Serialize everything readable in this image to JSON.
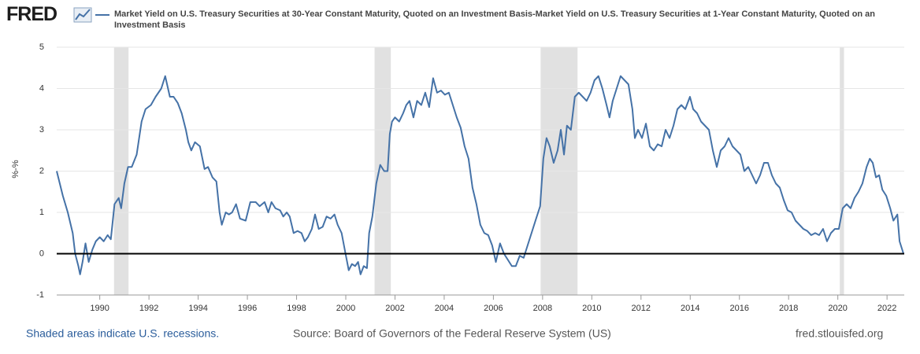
{
  "brand": "FRED",
  "footer": {
    "note": "Shaded areas indicate U.S. recessions.",
    "source": "Source: Board of Governors of the Federal Reserve System (US)",
    "site": "fred.stlouisfed.org"
  },
  "chart_data": {
    "type": "line",
    "y_label": "%-%",
    "xlim": [
      1988.25,
      2022.7
    ],
    "xticks": [
      1990,
      1992,
      1994,
      1996,
      1998,
      2000,
      2002,
      2004,
      2006,
      2008,
      2010,
      2012,
      2014,
      2016,
      2018,
      2020,
      2022
    ],
    "ylim": [
      -1,
      5
    ],
    "yticks": [
      -1,
      0,
      1,
      2,
      3,
      4,
      5
    ],
    "grid": true,
    "recession_color": "#e1e1e1",
    "recessions": [
      {
        "start": 1990.58,
        "end": 1991.17
      },
      {
        "start": 2001.17,
        "end": 2001.83
      },
      {
        "start": 2007.92,
        "end": 2009.42
      },
      {
        "start": 2020.08,
        "end": 2020.25
      }
    ],
    "x": [
      1988.25,
      1988.5,
      1988.7,
      1988.9,
      1989.0,
      1989.13,
      1989.2,
      1989.3,
      1989.42,
      1989.55,
      1989.7,
      1989.84,
      1990.0,
      1990.16,
      1990.32,
      1990.45,
      1990.6,
      1990.77,
      1990.87,
      1991.0,
      1991.15,
      1991.3,
      1991.5,
      1991.7,
      1991.86,
      1992.08,
      1992.27,
      1992.5,
      1992.66,
      1992.85,
      1993.0,
      1993.17,
      1993.33,
      1993.5,
      1993.6,
      1993.72,
      1993.87,
      1994.07,
      1994.26,
      1994.4,
      1994.58,
      1994.74,
      1994.87,
      1994.96,
      1995.12,
      1995.25,
      1995.38,
      1995.54,
      1995.7,
      1995.93,
      1996.12,
      1996.34,
      1996.5,
      1996.7,
      1996.85,
      1996.98,
      1997.14,
      1997.33,
      1997.46,
      1997.6,
      1997.72,
      1997.88,
      1998.04,
      1998.2,
      1998.33,
      1998.46,
      1998.62,
      1998.75,
      1998.9,
      1999.06,
      1999.22,
      1999.38,
      1999.54,
      1999.67,
      1999.83,
      1999.99,
      2000.12,
      2000.25,
      2000.38,
      2000.5,
      2000.6,
      2000.73,
      2000.86,
      2000.95,
      2001.08,
      2001.24,
      2001.4,
      2001.56,
      2001.7,
      2001.79,
      2001.88,
      2002.0,
      2002.17,
      2002.33,
      2002.46,
      2002.59,
      2002.75,
      2002.9,
      2003.07,
      2003.23,
      2003.39,
      2003.55,
      2003.71,
      2003.87,
      2004.03,
      2004.19,
      2004.35,
      2004.51,
      2004.67,
      2004.83,
      2004.99,
      2005.15,
      2005.31,
      2005.47,
      2005.63,
      2005.79,
      2005.95,
      2006.1,
      2006.27,
      2006.43,
      2006.59,
      2006.75,
      2006.91,
      2007.07,
      2007.23,
      2007.39,
      2007.55,
      2007.71,
      2007.9,
      2008.03,
      2008.16,
      2008.29,
      2008.45,
      2008.61,
      2008.74,
      2008.87,
      2008.99,
      2009.15,
      2009.31,
      2009.47,
      2009.63,
      2009.79,
      2009.95,
      2010.11,
      2010.27,
      2010.43,
      2010.6,
      2010.72,
      2010.85,
      2011.01,
      2011.17,
      2011.33,
      2011.49,
      2011.65,
      2011.75,
      2011.88,
      2012.04,
      2012.2,
      2012.36,
      2012.52,
      2012.68,
      2012.84,
      2013.0,
      2013.16,
      2013.32,
      2013.48,
      2013.64,
      2013.8,
      2013.99,
      2014.12,
      2014.28,
      2014.44,
      2014.6,
      2014.76,
      2014.92,
      2015.08,
      2015.24,
      2015.4,
      2015.56,
      2015.72,
      2015.88,
      2016.04,
      2016.2,
      2016.36,
      2016.52,
      2016.68,
      2016.84,
      2017.0,
      2017.16,
      2017.32,
      2017.48,
      2017.64,
      2017.8,
      2017.96,
      2018.12,
      2018.28,
      2018.44,
      2018.6,
      2018.76,
      2018.92,
      2019.08,
      2019.24,
      2019.4,
      2019.56,
      2019.72,
      2019.88,
      2020.04,
      2020.2,
      2020.36,
      2020.52,
      2020.68,
      2020.84,
      2021.0,
      2021.17,
      2021.3,
      2021.42,
      2021.55,
      2021.68,
      2021.81,
      2021.97,
      2022.13,
      2022.26,
      2022.42,
      2022.51,
      2022.67
    ],
    "series": [
      {
        "name": "Market Yield on U.S. Treasury Securities at 30-Year Constant Maturity, Quoted on an Investment Basis-Market Yield on U.S. Treasury Securities at 1-Year Constant Maturity, Quoted on an Investment Basis",
        "color": "#4572a7",
        "values": [
          2.0,
          1.4,
          1.0,
          0.5,
          0.0,
          -0.3,
          -0.5,
          -0.2,
          0.25,
          -0.2,
          0.1,
          0.3,
          0.4,
          0.3,
          0.45,
          0.35,
          1.2,
          1.35,
          1.1,
          1.7,
          2.1,
          2.1,
          2.4,
          3.2,
          3.5,
          3.6,
          3.8,
          4.0,
          4.3,
          3.8,
          3.8,
          3.65,
          3.4,
          3.0,
          2.7,
          2.5,
          2.7,
          2.6,
          2.05,
          2.1,
          1.85,
          1.75,
          1.0,
          0.7,
          1.0,
          0.95,
          1.0,
          1.2,
          0.85,
          0.8,
          1.25,
          1.25,
          1.15,
          1.25,
          1.0,
          1.25,
          1.1,
          1.05,
          0.9,
          1.0,
          0.9,
          0.5,
          0.55,
          0.5,
          0.3,
          0.4,
          0.6,
          0.95,
          0.6,
          0.65,
          0.9,
          0.85,
          0.95,
          0.7,
          0.5,
          0.0,
          -0.4,
          -0.25,
          -0.3,
          -0.2,
          -0.5,
          -0.3,
          -0.35,
          0.5,
          0.9,
          1.7,
          2.15,
          2.0,
          2.0,
          2.9,
          3.2,
          3.3,
          3.2,
          3.4,
          3.6,
          3.7,
          3.3,
          3.7,
          3.6,
          3.9,
          3.55,
          4.25,
          3.9,
          3.95,
          3.85,
          3.9,
          3.6,
          3.3,
          3.05,
          2.6,
          2.3,
          1.6,
          1.2,
          0.7,
          0.5,
          0.45,
          0.2,
          -0.2,
          0.25,
          0.0,
          -0.15,
          -0.3,
          -0.3,
          -0.05,
          -0.1,
          0.2,
          0.5,
          0.8,
          1.15,
          2.3,
          2.8,
          2.6,
          2.2,
          2.5,
          3.0,
          2.4,
          3.1,
          3.0,
          3.8,
          3.9,
          3.8,
          3.7,
          3.9,
          4.2,
          4.3,
          4.0,
          3.6,
          3.3,
          3.7,
          4.0,
          4.3,
          4.2,
          4.1,
          3.5,
          2.8,
          3.0,
          2.8,
          3.15,
          2.6,
          2.5,
          2.65,
          2.6,
          3.0,
          2.8,
          3.1,
          3.5,
          3.6,
          3.5,
          3.8,
          3.5,
          3.4,
          3.2,
          3.1,
          3.0,
          2.5,
          2.1,
          2.5,
          2.6,
          2.8,
          2.6,
          2.5,
          2.4,
          2.0,
          2.1,
          1.9,
          1.7,
          1.9,
          2.2,
          2.2,
          1.9,
          1.7,
          1.6,
          1.3,
          1.05,
          1.0,
          0.8,
          0.7,
          0.6,
          0.55,
          0.45,
          0.5,
          0.45,
          0.6,
          0.3,
          0.5,
          0.6,
          0.6,
          1.1,
          1.2,
          1.1,
          1.35,
          1.5,
          1.7,
          2.1,
          2.3,
          2.2,
          1.85,
          1.9,
          1.55,
          1.4,
          1.1,
          0.8,
          0.95,
          0.3,
          0.0
        ]
      }
    ]
  }
}
